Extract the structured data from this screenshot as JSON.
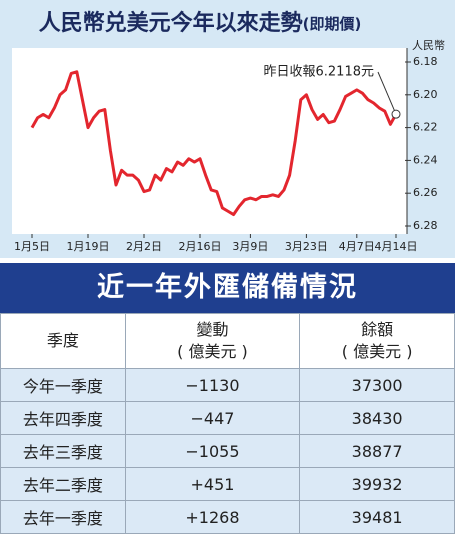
{
  "chart_data": {
    "type": "line",
    "title": "人民幣兑美元今年以來走勢",
    "subtitle": "(即期價)",
    "y_label": "人民幣",
    "annotation": "昨日收報6.2118元",
    "x": [
      "1月5日",
      null,
      null,
      null,
      null,
      null,
      null,
      null,
      null,
      null,
      "1月19日",
      null,
      null,
      null,
      null,
      null,
      null,
      null,
      null,
      null,
      "2月2日",
      null,
      null,
      null,
      null,
      null,
      null,
      null,
      null,
      null,
      "2月16日",
      null,
      null,
      null,
      null,
      null,
      null,
      null,
      null,
      "3月9日",
      null,
      null,
      null,
      null,
      null,
      null,
      null,
      null,
      null,
      "3月23日",
      null,
      null,
      null,
      null,
      null,
      null,
      null,
      null,
      "4月7日",
      null,
      null,
      null,
      null,
      null,
      null,
      "4月14日"
    ],
    "series": [
      {
        "color": "#e3262e",
        "values": [
          6.22,
          6.214,
          6.212,
          6.214,
          6.208,
          6.2,
          6.197,
          6.187,
          6.186,
          6.203,
          6.22,
          6.214,
          6.21,
          6.209,
          6.234,
          6.255,
          6.246,
          6.249,
          6.249,
          6.252,
          6.259,
          6.258,
          6.249,
          6.252,
          6.245,
          6.247,
          6.241,
          6.243,
          6.239,
          6.241,
          6.239,
          6.249,
          6.258,
          6.259,
          6.269,
          6.271,
          6.273,
          6.268,
          6.264,
          6.263,
          6.264,
          6.262,
          6.262,
          6.261,
          6.262,
          6.258,
          6.249,
          6.228,
          6.203,
          6.2,
          6.209,
          6.215,
          6.212,
          6.217,
          6.216,
          6.209,
          6.201,
          6.199,
          6.197,
          6.199,
          6.203,
          6.205,
          6.208,
          6.21,
          6.218,
          6.2118
        ]
      }
    ],
    "ylim": [
      6.18,
      6.28
    ],
    "inverted": true,
    "yticks": [
      6.18,
      {
        "value": 6.2,
        "label": "6.20"
      },
      6.22,
      6.24,
      6.26,
      6.28
    ]
  },
  "table": {
    "title": "近一年外匯儲備情況",
    "columns": [
      {
        "label": "季度"
      },
      {
        "label": "變動",
        "unit": "( 億美元 )"
      },
      {
        "label": "餘額",
        "unit": "( 億美元 )"
      }
    ],
    "rows": [
      [
        "今年一季度",
        "−1130",
        "37300"
      ],
      [
        "去年四季度",
        "−447",
        "38430"
      ],
      [
        "去年三季度",
        "−1055",
        "38877"
      ],
      [
        "去年二季度",
        "+451",
        "39932"
      ],
      [
        "去年一季度",
        "+1268",
        "39481"
      ]
    ]
  }
}
